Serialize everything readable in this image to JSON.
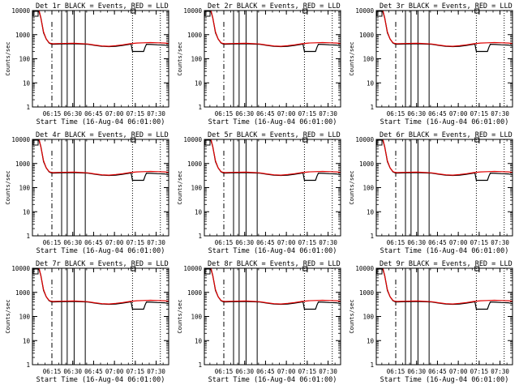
{
  "page": {
    "background": "#ffffff"
  },
  "colors": {
    "events": "#000000",
    "lld": "#e00000",
    "axis": "#000000"
  },
  "chart_data": {
    "type": "line",
    "layout": "3x3 grid",
    "title_template": "Det {n}r BLACK = Events, RED = LLD",
    "titles": [
      "Det 1r BLACK = Events, RED = LLD",
      "Det 2r BLACK = Events, RED = LLD",
      "Det 3r BLACK = Events, RED = LLD",
      "Det 4r BLACK = Events, RED = LLD",
      "Det 5r BLACK = Events, RED = LLD",
      "Det 6r BLACK = Events, RED = LLD",
      "Det 7r BLACK = Events, RED = LLD",
      "Det 8r BLACK = Events, RED = LLD",
      "Det 9r BLACK = Events, RED = LLD"
    ],
    "xlabel": "Start Time (16-Aug-04 06:01:00)",
    "ylabel": "Counts/sec",
    "yscale": "log",
    "ylim": [
      1,
      10000
    ],
    "xlim_minutes_after_start": [
      0,
      98
    ],
    "x_ticks": [
      {
        "minute": 14,
        "label": "06:15"
      },
      {
        "minute": 29,
        "label": "06:30"
      },
      {
        "minute": 44,
        "label": "06:45"
      },
      {
        "minute": 59,
        "label": "07:00"
      },
      {
        "minute": 74,
        "label": "07:15"
      },
      {
        "minute": 89,
        "label": "07:30"
      }
    ],
    "y_ticks": [
      {
        "value": 1,
        "label": "1"
      },
      {
        "value": 10,
        "label": "10"
      },
      {
        "value": 100,
        "label": "100"
      },
      {
        "value": 1000,
        "label": "1000"
      },
      {
        "value": 10000,
        "label": "10000"
      }
    ],
    "markers": {
      "dashed_minutes": [
        14
      ],
      "solid_minutes": [
        21,
        25,
        30,
        38
      ],
      "dotted_minutes": [
        72,
        92
      ]
    },
    "series": [
      {
        "name": "Events",
        "color": "#000000",
        "x": [
          0,
          2,
          4,
          6,
          7,
          8,
          10,
          12,
          14,
          20,
          30,
          40,
          45,
          50,
          55,
          60,
          65,
          70,
          71,
          72,
          74,
          76,
          80,
          81,
          82,
          86,
          90,
          95,
          98
        ],
        "y": [
          12000,
          12000,
          12000,
          5200,
          2500,
          1200,
          650,
          450,
          400,
          410,
          420,
          400,
          360,
          330,
          320,
          330,
          360,
          400,
          400,
          200,
          200,
          200,
          200,
          300,
          400,
          390,
          380,
          370,
          340
        ]
      },
      {
        "name": "LLD",
        "color": "#e00000",
        "x": [
          0,
          2,
          4,
          5,
          6,
          7,
          8,
          10,
          12,
          14,
          20,
          30,
          40,
          45,
          50,
          55,
          60,
          65,
          70,
          75,
          80,
          85,
          90,
          95,
          98
        ],
        "y": [
          12000,
          12000,
          12000,
          9000,
          5000,
          2600,
          1300,
          650,
          460,
          420,
          430,
          440,
          410,
          370,
          340,
          330,
          350,
          380,
          420,
          450,
          460,
          470,
          460,
          450,
          430
        ]
      }
    ],
    "corner_marks": "small open boxes at top-left and around 07:15 on the top axis"
  }
}
